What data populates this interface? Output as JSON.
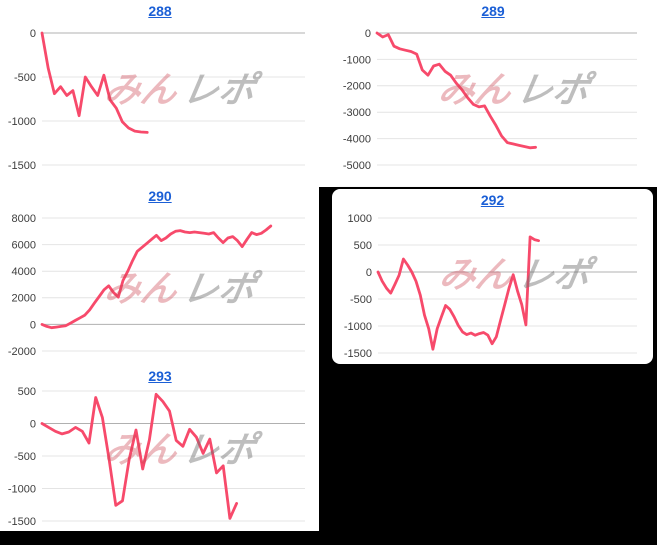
{
  "page": {
    "background": "#000000",
    "watermark": {
      "part1": "みん",
      "part2": "レポ"
    }
  },
  "colors": {
    "line": "#f74a6b",
    "title_link": "#1b5fd6",
    "grid": "#e4e4e4",
    "zero_line": "#b0b0b0",
    "axis_label": "#3d3d3d",
    "watermark_pink": "rgba(206,70,85,0.38)",
    "watermark_gray": "rgba(110,110,110,0.45)"
  },
  "chart_data": [
    {
      "id": "288",
      "title": "288",
      "type": "line",
      "ylim": [
        -1500,
        0
      ],
      "yticks": [
        0,
        -500,
        -1000,
        -1500
      ],
      "x_fill_fraction": 0.4,
      "grid": true,
      "legend": "none",
      "values": [
        0,
        -400,
        -690,
        -610,
        -710,
        -655,
        -940,
        -500,
        -610,
        -710,
        -480,
        -760,
        -855,
        -1010,
        -1080,
        -1115,
        -1125,
        -1130
      ]
    },
    {
      "id": "289",
      "title": "289",
      "type": "line",
      "ylim": [
        -5000,
        0
      ],
      "yticks": [
        0,
        -1000,
        -2000,
        -3000,
        -4000,
        -5000
      ],
      "x_fill_fraction": 0.61,
      "grid": true,
      "legend": "none",
      "values": [
        0,
        -150,
        -60,
        -500,
        -600,
        -650,
        -700,
        -800,
        -1400,
        -1600,
        -1250,
        -1180,
        -1450,
        -1600,
        -1900,
        -2150,
        -2450,
        -2700,
        -2800,
        -2760,
        -3150,
        -3500,
        -3900,
        -4150,
        -4200,
        -4250,
        -4300,
        -4350,
        -4330
      ]
    },
    {
      "id": "290",
      "title": "290",
      "type": "line",
      "ylim": [
        -2000,
        8000
      ],
      "yticks": [
        8000,
        6000,
        4000,
        2000,
        0,
        -2000
      ],
      "x_fill_fraction": 0.87,
      "grid": true,
      "legend": "none",
      "values": [
        0,
        -150,
        -250,
        -200,
        -150,
        -100,
        100,
        300,
        500,
        700,
        1100,
        1600,
        2100,
        2600,
        2900,
        2400,
        2050,
        3300,
        4000,
        4800,
        5500,
        5800,
        6100,
        6400,
        6700,
        6300,
        6500,
        6800,
        7000,
        7050,
        6950,
        6900,
        6950,
        6900,
        6850,
        6800,
        6900,
        6500,
        6150,
        6500,
        6600,
        6300,
        5850,
        6400,
        6900,
        6750,
        6850,
        7100,
        7400
      ]
    },
    {
      "id": "292",
      "title": "292",
      "type": "line",
      "ylim": [
        -1500,
        1000
      ],
      "yticks": [
        1000,
        500,
        0,
        -500,
        -1000,
        -1500
      ],
      "x_fill_fraction": 0.62,
      "grid": true,
      "legend": "none",
      "values": [
        0,
        -170,
        -300,
        -390,
        -230,
        -60,
        240,
        130,
        0,
        -170,
        -430,
        -800,
        -1050,
        -1430,
        -1050,
        -830,
        -620,
        -690,
        -830,
        -990,
        -1110,
        -1160,
        -1130,
        -1170,
        -1140,
        -1120,
        -1170,
        -1330,
        -1200,
        -900,
        -600,
        -300,
        -50,
        -350,
        -600,
        -980,
        650,
        600,
        580
      ]
    },
    {
      "id": "293",
      "title": "293",
      "type": "line",
      "ylim": [
        -1500,
        500
      ],
      "yticks": [
        500,
        0,
        -500,
        -1000,
        -1500
      ],
      "x_fill_fraction": 0.74,
      "grid": true,
      "legend": "none",
      "values": [
        0,
        -60,
        -120,
        -160,
        -130,
        -60,
        -120,
        -300,
        400,
        90,
        -550,
        -1260,
        -1190,
        -550,
        -100,
        -700,
        -250,
        450,
        340,
        190,
        -260,
        -350,
        -90,
        -210,
        -460,
        -240,
        -760,
        -650,
        -1460,
        -1230
      ]
    }
  ]
}
